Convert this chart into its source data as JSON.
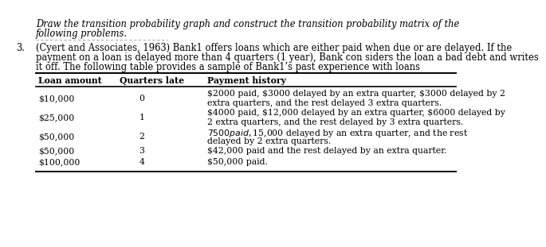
{
  "title_line1": "Draw the transition probability graph and construct the transition probability matrix of the",
  "title_line2": "following problems.",
  "problem_number": "3.",
  "problem_line1": "(Cyert and Associates, 1963) Bank1 offers loans which are either paid when due or are delayed. If the",
  "problem_line2": "payment on a loan is delayed more than 4 quarters (1 year), Bank con siders the loan a bad debt and writes",
  "problem_line3": "it off. The following table provides a sample of Bank1’s past experience with loans",
  "col_headers": [
    "Loan amount",
    "Quarters late",
    "Payment history"
  ],
  "rows": [
    {
      "loan": "$10,000",
      "quarters": "0",
      "history_line1": "$2000 paid, $3000 delayed by an extra quarter, $3000 delayed by 2",
      "history_line2": "extra quarters, and the rest delayed 3 extra quarters."
    },
    {
      "loan": "$25,000",
      "quarters": "1",
      "history_line1": "$4000 paid, $12,000 delayed by an extra quarter, $6000 delayed by",
      "history_line2": "2 extra quarters, and the rest delayed by 3 extra quarters."
    },
    {
      "loan": "$50,000",
      "quarters": "2",
      "history_line1": "$7500 paid, $15,000 delayed by an extra quarter, and the rest",
      "history_line2": "delayed by 2 extra quarters."
    },
    {
      "loan": "$50,000",
      "quarters": "3",
      "history_line1": "$42,000 paid and the rest delayed by an extra quarter.",
      "history_line2": ""
    },
    {
      "loan": "$100,000",
      "quarters": "4",
      "history_line1": "$50,000 paid.",
      "history_line2": ""
    }
  ],
  "background_color": "#ffffff",
  "text_color": "#000000",
  "font_size_title": 8.3,
  "font_size_body": 8.3,
  "font_size_table": 7.8
}
